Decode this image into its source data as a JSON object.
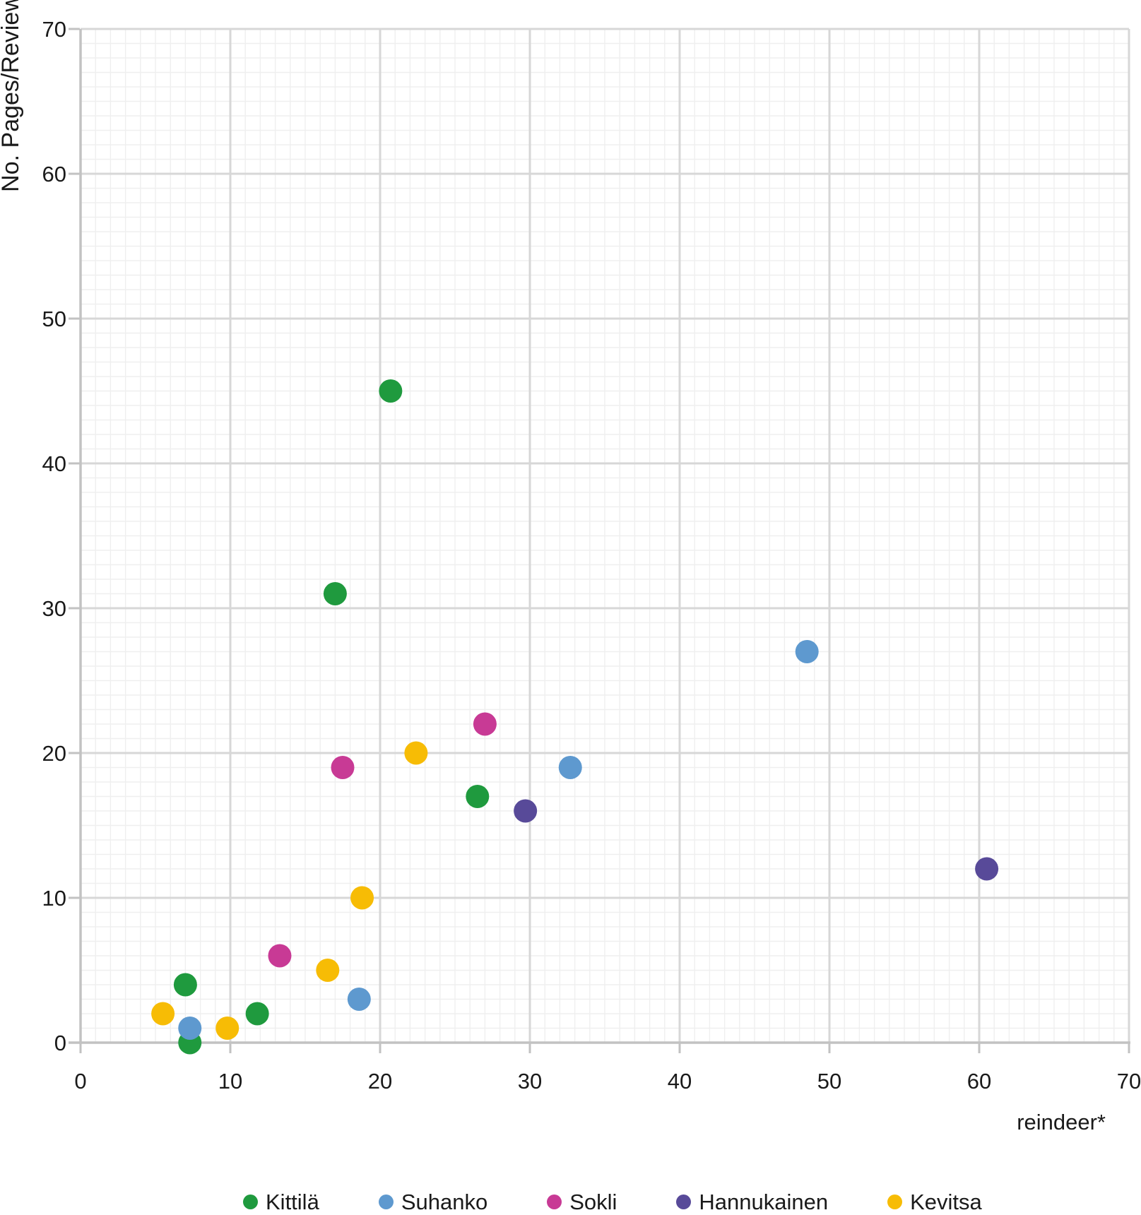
{
  "chart_data": {
    "type": "scatter",
    "title": "",
    "xlabel": "reindeer*",
    "ylabel": "No. Pages/Review",
    "xlim": [
      0,
      70
    ],
    "ylim": [
      0,
      70
    ],
    "xticks": [
      0,
      10,
      20,
      30,
      40,
      50,
      60,
      70
    ],
    "yticks": [
      0,
      10,
      20,
      30,
      40,
      50,
      60,
      70
    ],
    "grid": {
      "major_every": 10,
      "minor_every": 1,
      "major_color": "#d7d7d7",
      "minor_color": "#efefef",
      "axis_color": "#c2c2c2"
    },
    "legend_position": "bottom",
    "series": [
      {
        "name": "Kittilä",
        "color": "#1f9a3e",
        "points": [
          [
            7,
            4
          ],
          [
            7.3,
            0
          ],
          [
            11.8,
            2
          ],
          [
            17,
            31
          ],
          [
            20.7,
            45
          ],
          [
            26.5,
            17
          ]
        ]
      },
      {
        "name": "Suhanko",
        "color": "#5e99cf",
        "points": [
          [
            7.3,
            1
          ],
          [
            18.6,
            3
          ],
          [
            32.7,
            19
          ],
          [
            48.5,
            27
          ]
        ]
      },
      {
        "name": "Sokli",
        "color": "#c83a95",
        "points": [
          [
            13.3,
            6
          ],
          [
            17.5,
            19
          ],
          [
            27,
            22
          ]
        ]
      },
      {
        "name": "Hannukainen",
        "color": "#584a99",
        "points": [
          [
            29.7,
            16
          ],
          [
            60.5,
            12
          ]
        ]
      },
      {
        "name": "Kevitsa",
        "color": "#f7bc05",
        "points": [
          [
            5.5,
            2
          ],
          [
            9.8,
            1
          ],
          [
            16.5,
            5
          ],
          [
            18.8,
            10
          ],
          [
            22.4,
            20
          ]
        ]
      }
    ],
    "text_color": "#1a1a1a"
  }
}
